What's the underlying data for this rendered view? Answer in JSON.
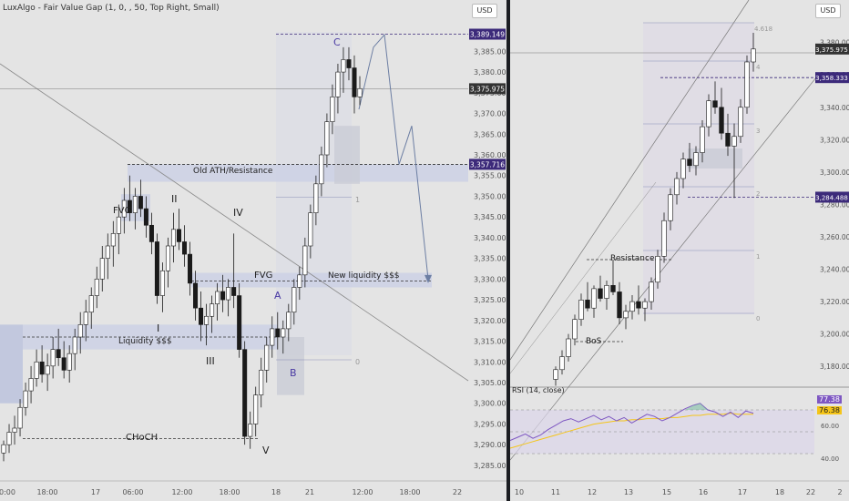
{
  "left_chart": {
    "header": "LuxAlgo - Fair Value Gap (1, 0, , 50, Top Right, Small)",
    "currency_button": "USD",
    "annotations": {
      "old_resistance": "Old ATH/Resistance",
      "liquidity": "Liquidity $$$",
      "new_liquidity": "New liquidity $$$",
      "fvg_left": "FVG",
      "fvg_mid": "FVG",
      "choch": "CHoCH",
      "wave_I": "I",
      "wave_II": "II",
      "wave_III": "III",
      "wave_IV": "IV",
      "wave_V": "V",
      "wave_A": "A",
      "wave_B": "B",
      "wave_C": "C",
      "fib_1": "1",
      "fib_0": "0"
    }
  },
  "right_chart": {
    "currency_button": "USD",
    "annotations": {
      "resistance": "Resistance",
      "bos": "BoS",
      "fib_4618": "4.618",
      "fib_4": "4",
      "fib_3": "3",
      "fib_2": "2",
      "fib_1": "1",
      "fib_0": "0"
    },
    "rsi": {
      "label": "RSI (14, close)",
      "value_rsi": "77.38",
      "value_ma": "76.38",
      "levels": [
        "80.00",
        "60.00",
        "40.00"
      ]
    }
  },
  "colors": {
    "background": "#e4e4e4",
    "up_candle": "#1a1a1a",
    "down_candle": "#1a1a1a",
    "price_badge": "#3c2a7a",
    "fvg_zone": "#cfd3e3",
    "rsi_line": "#7e57c2",
    "rsi_ma": "#f5c518"
  },
  "chart_data": [
    {
      "type": "candlestick",
      "title": "",
      "y_axis_ticks": [
        "3,385.000",
        "3,380.000",
        "3,375.000",
        "3,370.000",
        "3,365.000",
        "3,360.000",
        "3,355.000",
        "3,350.000",
        "3,345.000",
        "3,340.000",
        "3,335.000",
        "3,330.000",
        "3,325.000",
        "3,320.000",
        "3,315.000",
        "3,310.000",
        "3,305.000",
        "3,300.000",
        "3,295.000",
        "3,290.000",
        "3,285.000"
      ],
      "x_axis_ticks": [
        "0:00",
        "18:00",
        "17",
        "06:00",
        "12:00",
        "18:00",
        "18",
        "21",
        "12:00",
        "18:00",
        "22"
      ],
      "ylim": [
        3283,
        3393
      ],
      "price_badges": [
        {
          "label": "3,389.149",
          "value": 3389.149
        },
        {
          "label": "3,375.975",
          "value": 3375.975,
          "current": true
        },
        {
          "label": "3,357.716",
          "value": 3357.716
        }
      ],
      "candles": [
        [
          3288,
          3291,
          3286,
          3290
        ],
        [
          3290,
          3295,
          3288,
          3293
        ],
        [
          3293,
          3297,
          3290,
          3294
        ],
        [
          3294,
          3301,
          3292,
          3299
        ],
        [
          3299,
          3305,
          3297,
          3303
        ],
        [
          3303,
          3309,
          3300,
          3306
        ],
        [
          3306,
          3313,
          3304,
          3310
        ],
        [
          3310,
          3314,
          3305,
          3307
        ],
        [
          3307,
          3312,
          3303,
          3309
        ],
        [
          3309,
          3316,
          3306,
          3313
        ],
        [
          3313,
          3318,
          3309,
          3311
        ],
        [
          3311,
          3315,
          3306,
          3308
        ],
        [
          3308,
          3314,
          3305,
          3312
        ],
        [
          3312,
          3318,
          3308,
          3316
        ],
        [
          3316,
          3322,
          3312,
          3319
        ],
        [
          3319,
          3325,
          3315,
          3322
        ],
        [
          3322,
          3328,
          3318,
          3326
        ],
        [
          3326,
          3333,
          3323,
          3330
        ],
        [
          3330,
          3338,
          3327,
          3335
        ],
        [
          3335,
          3341,
          3330,
          3338
        ],
        [
          3338,
          3344,
          3333,
          3341
        ],
        [
          3341,
          3348,
          3336,
          3345
        ],
        [
          3345,
          3352,
          3341,
          3349
        ],
        [
          3349,
          3355,
          3344,
          3346
        ],
        [
          3346,
          3352,
          3342,
          3350
        ],
        [
          3350,
          3354,
          3345,
          3347
        ],
        [
          3347,
          3350,
          3340,
          3343
        ],
        [
          3343,
          3346,
          3336,
          3339
        ],
        [
          3339,
          3341,
          3324,
          3326
        ],
        [
          3326,
          3334,
          3322,
          3332
        ],
        [
          3332,
          3340,
          3328,
          3338
        ],
        [
          3338,
          3346,
          3334,
          3342
        ],
        [
          3342,
          3347,
          3337,
          3339
        ],
        [
          3339,
          3343,
          3333,
          3336
        ],
        [
          3336,
          3339,
          3326,
          3329
        ],
        [
          3329,
          3332,
          3320,
          3323
        ],
        [
          3323,
          3327,
          3315,
          3319
        ],
        [
          3319,
          3324,
          3314,
          3321
        ],
        [
          3321,
          3326,
          3317,
          3324
        ],
        [
          3324,
          3329,
          3320,
          3327
        ],
        [
          3327,
          3331,
          3322,
          3325
        ],
        [
          3325,
          3330,
          3321,
          3328
        ],
        [
          3328,
          3341,
          3323,
          3326
        ],
        [
          3326,
          3329,
          3311,
          3313
        ],
        [
          3313,
          3315,
          3290,
          3292
        ],
        [
          3292,
          3298,
          3289,
          3295
        ],
        [
          3295,
          3304,
          3292,
          3302
        ],
        [
          3302,
          3311,
          3299,
          3308
        ],
        [
          3308,
          3316,
          3305,
          3314
        ],
        [
          3314,
          3321,
          3311,
          3318
        ],
        [
          3318,
          3322,
          3313,
          3316
        ],
        [
          3316,
          3320,
          3312,
          3318
        ],
        [
          3318,
          3324,
          3315,
          3322
        ],
        [
          3322,
          3330,
          3319,
          3328
        ],
        [
          3328,
          3333,
          3325,
          3331
        ],
        [
          3331,
          3340,
          3328,
          3338
        ],
        [
          3338,
          3348,
          3335,
          3346
        ],
        [
          3346,
          3355,
          3343,
          3353
        ],
        [
          3353,
          3362,
          3350,
          3360
        ],
        [
          3360,
          3370,
          3357,
          3368
        ],
        [
          3368,
          3377,
          3365,
          3374
        ],
        [
          3374,
          3382,
          3370,
          3380
        ],
        [
          3380,
          3386,
          3375,
          3383
        ],
        [
          3383,
          3386,
          3378,
          3381
        ],
        [
          3381,
          3384,
          3370,
          3374
        ],
        [
          3374,
          3379,
          3372,
          3376
        ]
      ]
    },
    {
      "type": "candlestick",
      "title": "",
      "y_axis_ticks": [
        "3,380.000",
        "3,360.000",
        "3,340.000",
        "3,320.000",
        "3,300.000",
        "3,280.000",
        "3,260.000",
        "3,240.000",
        "3,220.000",
        "3,200.000",
        "3,180.000"
      ],
      "x_axis_ticks": [
        "10",
        "11",
        "12",
        "13",
        "15",
        "16",
        "17",
        "18",
        "22",
        "2"
      ],
      "ylim": [
        3170,
        3395
      ],
      "price_badges": [
        {
          "label": "3,375.975",
          "value": 3375.975,
          "current": true
        },
        {
          "label": "3,358.333",
          "value": 3358.333
        },
        {
          "label": "3,284.488",
          "value": 3284.488
        }
      ],
      "candles": [
        [
          3172,
          3180,
          3168,
          3178
        ],
        [
          3178,
          3190,
          3175,
          3186
        ],
        [
          3186,
          3200,
          3183,
          3197
        ],
        [
          3197,
          3212,
          3193,
          3209
        ],
        [
          3209,
          3225,
          3205,
          3221
        ],
        [
          3221,
          3232,
          3214,
          3216
        ],
        [
          3216,
          3230,
          3210,
          3228
        ],
        [
          3228,
          3236,
          3220,
          3222
        ],
        [
          3222,
          3233,
          3215,
          3230
        ],
        [
          3230,
          3246,
          3224,
          3226
        ],
        [
          3226,
          3232,
          3206,
          3210
        ],
        [
          3210,
          3218,
          3203,
          3214
        ],
        [
          3214,
          3224,
          3209,
          3220
        ],
        [
          3220,
          3230,
          3212,
          3216
        ],
        [
          3216,
          3222,
          3208,
          3220
        ],
        [
          3220,
          3235,
          3215,
          3232
        ],
        [
          3232,
          3252,
          3228,
          3248
        ],
        [
          3248,
          3275,
          3244,
          3270
        ],
        [
          3270,
          3290,
          3264,
          3286
        ],
        [
          3286,
          3300,
          3280,
          3296
        ],
        [
          3296,
          3312,
          3290,
          3308
        ],
        [
          3308,
          3318,
          3300,
          3304
        ],
        [
          3304,
          3316,
          3298,
          3312
        ],
        [
          3312,
          3332,
          3306,
          3328
        ],
        [
          3328,
          3348,
          3322,
          3344
        ],
        [
          3344,
          3356,
          3336,
          3340
        ],
        [
          3340,
          3352,
          3320,
          3324
        ],
        [
          3324,
          3336,
          3310,
          3316
        ],
        [
          3316,
          3330,
          3284,
          3322
        ],
        [
          3322,
          3345,
          3318,
          3340
        ],
        [
          3340,
          3372,
          3336,
          3368
        ],
        [
          3368,
          3386,
          3362,
          3376
        ]
      ]
    },
    {
      "type": "line",
      "title": "RSI (14, close)",
      "ylim": [
        20,
        95
      ],
      "levels": [
        80,
        60,
        40
      ],
      "series": [
        {
          "name": "RSI",
          "values": [
            52,
            55,
            58,
            54,
            57,
            62,
            66,
            70,
            72,
            69,
            72,
            75,
            71,
            74,
            70,
            73,
            68,
            72,
            76,
            74,
            70,
            73,
            77,
            81,
            84,
            86,
            80,
            78,
            74,
            78,
            73,
            79,
            77
          ]
        },
        {
          "name": "MA",
          "values": [
            45,
            47,
            49,
            51,
            53,
            55,
            57,
            59,
            61,
            63,
            65,
            67,
            68,
            69,
            70,
            70,
            71,
            71,
            72,
            72,
            72,
            73,
            73,
            74,
            75,
            75,
            76,
            76,
            76,
            77,
            76,
            76,
            76
          ]
        }
      ]
    }
  ]
}
